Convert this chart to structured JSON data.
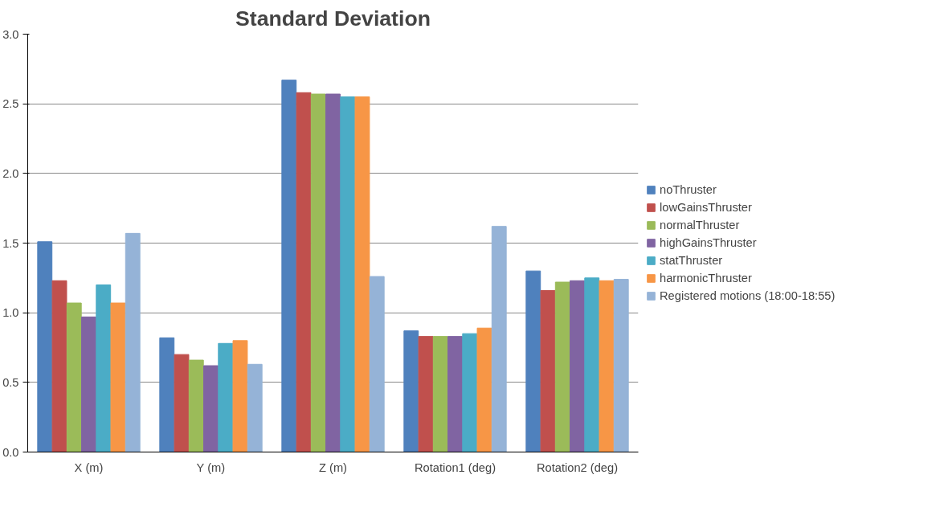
{
  "chart_data": {
    "type": "bar",
    "title": "Standard Deviation",
    "categories": [
      "X (m)",
      "Y (m)",
      "Z (m)",
      "Rotation1 (deg)",
      "Rotation2 (deg)"
    ],
    "series": [
      {
        "name": "noThruster",
        "color": "#4f81bd",
        "values": [
          1.51,
          0.82,
          2.67,
          0.87,
          1.3
        ]
      },
      {
        "name": "lowGainsThruster",
        "color": "#c0504d",
        "values": [
          1.23,
          0.7,
          2.58,
          0.83,
          1.16
        ]
      },
      {
        "name": "normalThruster",
        "color": "#9bbb59",
        "values": [
          1.07,
          0.66,
          2.57,
          0.83,
          1.22
        ]
      },
      {
        "name": "highGainsThruster",
        "color": "#8064a2",
        "values": [
          0.97,
          0.62,
          2.57,
          0.83,
          1.23
        ]
      },
      {
        "name": "statThruster",
        "color": "#4bacc6",
        "values": [
          1.2,
          0.78,
          2.55,
          0.85,
          1.25
        ]
      },
      {
        "name": "harmonicThruster",
        "color": "#f79646",
        "values": [
          1.07,
          0.8,
          2.55,
          0.89,
          1.23
        ]
      },
      {
        "name": "Registered motions (18:00-18:55)",
        "color": "#95b3d7",
        "values": [
          1.57,
          0.63,
          1.26,
          1.62,
          1.24
        ]
      }
    ],
    "ylim": [
      0,
      3.0
    ],
    "yticks": [
      {
        "value": 0,
        "label": "0.0"
      },
      {
        "value": 0.5,
        "label": "0.5"
      },
      {
        "value": 1.0,
        "label": "1.0"
      },
      {
        "value": 1.5,
        "label": "1.5"
      },
      {
        "value": 2.0,
        "label": "2.0"
      },
      {
        "value": 2.5,
        "label": "2.5"
      },
      {
        "value": 3.0,
        "label": "3.0"
      }
    ],
    "grid": "y",
    "legend": "right"
  }
}
